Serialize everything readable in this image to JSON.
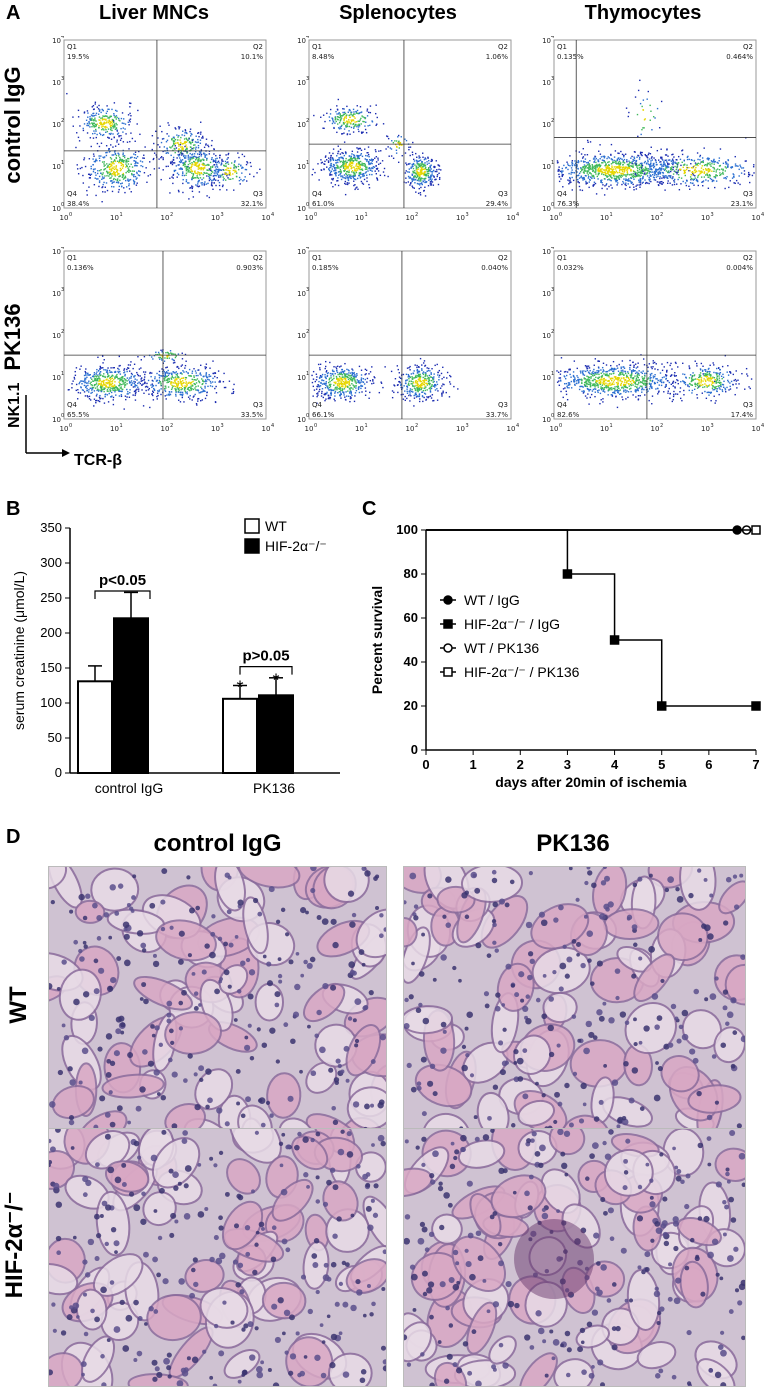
{
  "panelA": {
    "label": "A",
    "columns": [
      "Liver MNCs",
      "Splenocytes",
      "Thymocytes"
    ],
    "rows": [
      "control IgG",
      "PK136"
    ],
    "y_axis": "NK1.1",
    "x_axis": "TCR-β",
    "tick_labels": [
      "10",
      "10",
      "10",
      "10",
      "10"
    ],
    "tick_exps": [
      "0",
      "1",
      "2",
      "3",
      "4"
    ],
    "quadrant_names": [
      "Q1",
      "Q2",
      "Q3",
      "Q4"
    ],
    "quadrants": [
      [
        {
          "Q1": "19.5%",
          "Q2": "10.1%",
          "Q3": "32.1%",
          "Q4": "38.4%"
        },
        {
          "Q1": "8.48%",
          "Q2": "1.06%",
          "Q3": "29.4%",
          "Q4": "61.0%"
        },
        {
          "Q1": "0.135%",
          "Q2": "0.464%",
          "Q3": "23.1%",
          "Q4": "76.3%"
        }
      ],
      [
        {
          "Q1": "0.136%",
          "Q2": "0.903%",
          "Q3": "33.5%",
          "Q4": "65.5%"
        },
        {
          "Q1": "0.185%",
          "Q2": "0.040%",
          "Q3": "33.7%",
          "Q4": "66.1%"
        },
        {
          "Q1": "0.032%",
          "Q2": "0.004%",
          "Q3": "17.4%",
          "Q4": "82.6%"
        }
      ]
    ]
  },
  "panelB": {
    "label": "B",
    "chart_data": {
      "type": "bar",
      "categories": [
        "control IgG",
        "PK136"
      ],
      "series": [
        {
          "name": "WT",
          "values": [
            131,
            106
          ],
          "errors": [
            22,
            19
          ],
          "color": "#ffffff"
        },
        {
          "name": "HIF-2α⁻/⁻",
          "values": [
            221,
            111
          ],
          "errors": [
            37,
            25
          ],
          "color": "#000000"
        }
      ],
      "ylabel": "serum creatinine (μmol/L)",
      "ylim": [
        0,
        350
      ],
      "yticks": [
        "0",
        "50",
        "100",
        "150",
        "200",
        "250",
        "300",
        "350"
      ],
      "annotations": [
        "p<0.05",
        "p>0.05",
        "*",
        "*"
      ],
      "legend_position": "top-right"
    }
  },
  "panelC": {
    "label": "C",
    "chart_data": {
      "type": "line",
      "step": true,
      "xlabel": "days after 20min of ischemia",
      "ylabel": "Percent survival",
      "xlim": [
        0,
        7
      ],
      "ylim": [
        0,
        100
      ],
      "xticks": [
        "0",
        "1",
        "2",
        "3",
        "4",
        "5",
        "6",
        "7"
      ],
      "yticks": [
        "0",
        "20",
        "40",
        "60",
        "80",
        "100"
      ],
      "series": [
        {
          "name": "WT / IgG",
          "marker": "filled-circle",
          "x": [
            0,
            6.6
          ],
          "y": [
            100,
            100
          ]
        },
        {
          "name": "HIF-2α⁻/⁻ / IgG",
          "marker": "filled-square",
          "x": [
            0,
            3,
            4,
            5,
            7
          ],
          "y": [
            100,
            80,
            50,
            20,
            20
          ]
        },
        {
          "name": "WT / PK136",
          "marker": "open-circle",
          "x": [
            0,
            6.8
          ],
          "y": [
            100,
            100
          ]
        },
        {
          "name": "HIF-2α⁻/⁻ / PK136",
          "marker": "open-square",
          "x": [
            0,
            7
          ],
          "y": [
            100,
            100
          ]
        }
      ],
      "legend_position": "center-left"
    }
  },
  "panelD": {
    "label": "D",
    "columns": [
      "control IgG",
      "PK136"
    ],
    "rows": [
      "WT",
      "HIF-2α⁻/⁻"
    ]
  }
}
